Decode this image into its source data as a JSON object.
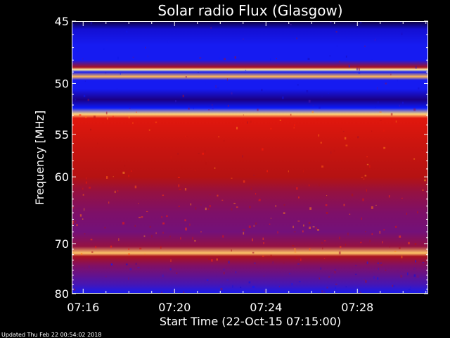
{
  "chart_data": {
    "type": "heatmap",
    "title": "Solar radio Flux (Glasgow)",
    "xlabel": "Start Time (22-Oct-15 07:15:00)",
    "ylabel": "Frequency [MHz]",
    "x_range_minutes": [
      0.5,
      16.1
    ],
    "x_ticks": [
      {
        "minute": 1,
        "label": "07:16"
      },
      {
        "minute": 5,
        "label": "07:20"
      },
      {
        "minute": 9,
        "label": "07:24"
      },
      {
        "minute": 13,
        "label": "07:28"
      }
    ],
    "y_range_mhz": [
      45,
      80
    ],
    "y_scale": "inverse (frequency increases downward, compressed toward high frequencies)",
    "y_ticks": [
      45,
      50,
      55,
      60,
      70,
      80
    ],
    "colormap": [
      "#000000",
      "#1f00a0",
      "#0b1cff",
      "#7a1070",
      "#b01212",
      "#ff1a0a",
      "#ff8a1a",
      "#fff2a0"
    ],
    "intensity_profile": [
      {
        "mhz": 45.0,
        "level": 0.05
      },
      {
        "mhz": 45.6,
        "level": 0.22
      },
      {
        "mhz": 46.8,
        "level": 0.3
      },
      {
        "mhz": 48.0,
        "level": 0.3
      },
      {
        "mhz": 48.6,
        "level": 0.55
      },
      {
        "mhz": 48.8,
        "level": 1.0
      },
      {
        "mhz": 49.0,
        "level": 0.3
      },
      {
        "mhz": 49.4,
        "level": 0.92
      },
      {
        "mhz": 49.7,
        "level": 0.3
      },
      {
        "mhz": 50.5,
        "level": 0.3
      },
      {
        "mhz": 51.5,
        "level": 0.12
      },
      {
        "mhz": 52.3,
        "level": 0.28
      },
      {
        "mhz": 52.9,
        "level": 0.96
      },
      {
        "mhz": 53.3,
        "level": 0.66
      },
      {
        "mhz": 56.0,
        "level": 0.62
      },
      {
        "mhz": 60.0,
        "level": 0.58
      },
      {
        "mhz": 62.0,
        "level": 0.5
      },
      {
        "mhz": 65.0,
        "level": 0.44
      },
      {
        "mhz": 68.0,
        "level": 0.42
      },
      {
        "mhz": 70.5,
        "level": 0.5
      },
      {
        "mhz": 71.7,
        "level": 0.94
      },
      {
        "mhz": 72.3,
        "level": 0.55
      },
      {
        "mhz": 74.0,
        "level": 0.45
      },
      {
        "mhz": 76.0,
        "level": 0.4
      },
      {
        "mhz": 78.0,
        "level": 0.36
      },
      {
        "mhz": 80.0,
        "level": 0.3
      }
    ],
    "grid": false,
    "legend": "none"
  },
  "footer": {
    "updated": "Updated Thu Feb 22 00:54:02 2018"
  }
}
